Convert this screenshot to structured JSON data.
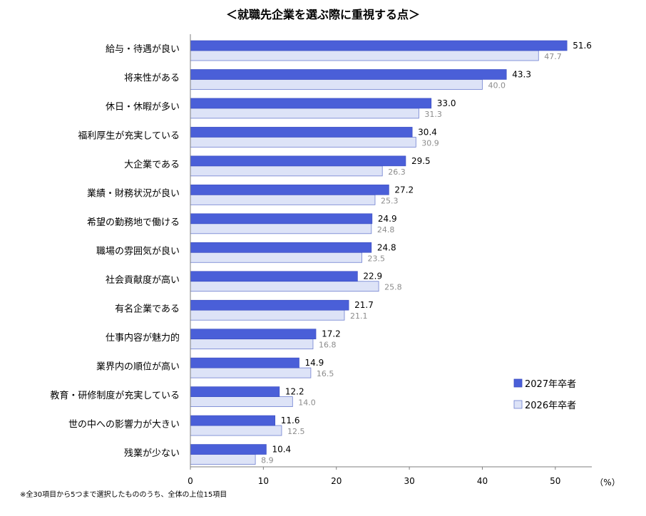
{
  "chart_data": {
    "type": "bar",
    "orientation": "horizontal",
    "title": "＜就職先企業を選ぶ際に重視する点＞",
    "categories": [
      "給与・待遇が良い",
      "将来性がある",
      "休日・休暇が多い",
      "福利厚生が充実している",
      "大企業である",
      "業績・財務状況が良い",
      "希望の勤務地で働ける",
      "職場の雰囲気が良い",
      "社会貢献度が高い",
      "有名企業である",
      "仕事内容が魅力的",
      "業界内の順位が高い",
      "教育・研修制度が充実している",
      "世の中への影響力が大きい",
      "残業が少ない"
    ],
    "series": [
      {
        "name": "2027年卒者",
        "color": "#4a5fd8",
        "values": [
          51.6,
          43.3,
          33.0,
          30.4,
          29.5,
          27.2,
          24.9,
          24.8,
          22.9,
          21.7,
          17.2,
          14.9,
          12.2,
          11.6,
          10.4
        ]
      },
      {
        "name": "2026年卒者",
        "color": "#dde3f7",
        "values": [
          47.7,
          40.0,
          31.3,
          30.9,
          26.3,
          25.3,
          24.8,
          23.5,
          25.8,
          21.1,
          16.8,
          16.5,
          14.0,
          12.5,
          8.9
        ]
      }
    ],
    "xlim": [
      0,
      55
    ],
    "xticks": [
      0,
      10,
      20,
      30,
      40,
      50
    ],
    "unit_label": "（%）",
    "legend_position": "right",
    "grid": false,
    "footnote": "※全30項目から5つまで選択したもののうち、全体の上位15項目"
  }
}
